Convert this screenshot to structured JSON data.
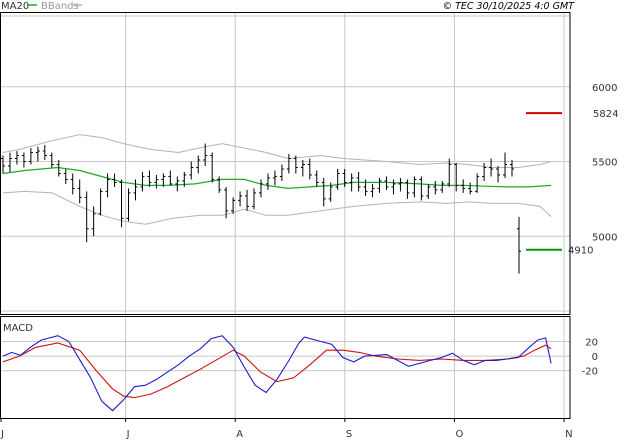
{
  "header": {
    "ma_label": "MA20",
    "bbands_label": "BBands",
    "copyright": "© TEC 30/10/2025 4:0 GMT"
  },
  "macd_label": "MACD",
  "colors": {
    "background": "#ffffff",
    "grid": "#c8c8c8",
    "frame": "#000000",
    "bbands": "#b4b4b4",
    "ma": "#1faa1f",
    "ohlc": "#000000",
    "resistance": "#cc0000",
    "support": "#009900",
    "macd": "#1c1ccf",
    "signal": "#cc1111"
  },
  "chart_data": [
    {
      "type": "ohlc",
      "name": "price",
      "ylim": [
        4480,
        6500
      ],
      "y_ticks": [
        5000,
        5500,
        6000
      ],
      "x_ticks": [
        "J",
        "J",
        "A",
        "S",
        "O",
        "N"
      ],
      "x_tick_values": [
        0,
        1,
        2,
        3,
        4,
        5
      ],
      "xlim": [
        0,
        5.2
      ],
      "x_values_note_units": "months from first tick",
      "levels": [
        {
          "label": "5824",
          "value": 5824,
          "color": "#cc0000"
        },
        {
          "label": "4910",
          "value": 4910,
          "color": "#009900"
        }
      ],
      "bars_open_high_low_close": [
        [
          5520,
          5540,
          5420,
          5470
        ],
        [
          5470,
          5560,
          5430,
          5520
        ],
        [
          5520,
          5570,
          5480,
          5540
        ],
        [
          5540,
          5560,
          5460,
          5500
        ],
        [
          5500,
          5590,
          5480,
          5560
        ],
        [
          5560,
          5600,
          5500,
          5570
        ],
        [
          5570,
          5610,
          5510,
          5540
        ],
        [
          5540,
          5560,
          5460,
          5480
        ],
        [
          5480,
          5510,
          5400,
          5420
        ],
        [
          5420,
          5450,
          5350,
          5380
        ],
        [
          5380,
          5420,
          5280,
          5320
        ],
        [
          5320,
          5380,
          5220,
          5260
        ],
        [
          5260,
          5300,
          4960,
          5050
        ],
        [
          5050,
          5200,
          5000,
          5150
        ],
        [
          5150,
          5320,
          5140,
          5300
        ],
        [
          5300,
          5420,
          5260,
          5380
        ],
        [
          5380,
          5420,
          5330,
          5360
        ],
        [
          5360,
          5380,
          5060,
          5120
        ],
        [
          5120,
          5320,
          5100,
          5290
        ],
        [
          5290,
          5380,
          5240,
          5330
        ],
        [
          5330,
          5430,
          5300,
          5400
        ],
        [
          5400,
          5440,
          5330,
          5360
        ],
        [
          5360,
          5410,
          5320,
          5380
        ],
        [
          5380,
          5420,
          5330,
          5400
        ],
        [
          5400,
          5440,
          5340,
          5350
        ],
        [
          5350,
          5400,
          5300,
          5370
        ],
        [
          5370,
          5430,
          5330,
          5410
        ],
        [
          5410,
          5500,
          5380,
          5460
        ],
        [
          5460,
          5540,
          5420,
          5510
        ],
        [
          5510,
          5620,
          5470,
          5540
        ],
        [
          5540,
          5560,
          5360,
          5380
        ],
        [
          5380,
          5400,
          5290,
          5310
        ],
        [
          5310,
          5330,
          5120,
          5170
        ],
        [
          5170,
          5260,
          5150,
          5240
        ],
        [
          5240,
          5300,
          5200,
          5270
        ],
        [
          5270,
          5310,
          5170,
          5200
        ],
        [
          5200,
          5320,
          5180,
          5290
        ],
        [
          5290,
          5380,
          5260,
          5350
        ],
        [
          5350,
          5420,
          5310,
          5390
        ],
        [
          5390,
          5440,
          5340,
          5400
        ],
        [
          5400,
          5480,
          5370,
          5450
        ],
        [
          5450,
          5550,
          5420,
          5520
        ],
        [
          5520,
          5540,
          5420,
          5460
        ],
        [
          5460,
          5510,
          5400,
          5480
        ],
        [
          5480,
          5520,
          5380,
          5410
        ],
        [
          5410,
          5440,
          5330,
          5360
        ],
        [
          5360,
          5390,
          5200,
          5250
        ],
        [
          5250,
          5360,
          5230,
          5330
        ],
        [
          5330,
          5450,
          5310,
          5420
        ],
        [
          5420,
          5450,
          5330,
          5360
        ],
        [
          5360,
          5420,
          5300,
          5390
        ],
        [
          5390,
          5430,
          5300,
          5330
        ],
        [
          5330,
          5380,
          5270,
          5300
        ],
        [
          5300,
          5350,
          5260,
          5320
        ],
        [
          5320,
          5390,
          5290,
          5370
        ],
        [
          5370,
          5400,
          5310,
          5330
        ],
        [
          5330,
          5380,
          5280,
          5350
        ],
        [
          5350,
          5390,
          5300,
          5360
        ],
        [
          5360,
          5380,
          5250,
          5290
        ],
        [
          5290,
          5400,
          5260,
          5380
        ],
        [
          5380,
          5400,
          5240,
          5270
        ],
        [
          5270,
          5350,
          5250,
          5330
        ],
        [
          5330,
          5370,
          5280,
          5310
        ],
        [
          5310,
          5370,
          5290,
          5350
        ],
        [
          5350,
          5520,
          5330,
          5480
        ],
        [
          5480,
          5490,
          5300,
          5340
        ],
        [
          5340,
          5380,
          5290,
          5320
        ],
        [
          5320,
          5360,
          5280,
          5300
        ],
        [
          5300,
          5420,
          5290,
          5400
        ],
        [
          5400,
          5490,
          5370,
          5460
        ],
        [
          5460,
          5520,
          5400,
          5450
        ],
        [
          5450,
          5470,
          5360,
          5410
        ],
        [
          5410,
          5560,
          5390,
          5480
        ],
        [
          5480,
          5510,
          5400,
          5450
        ],
        [
          5050,
          5130,
          4750,
          4900
        ]
      ],
      "bbands_upper": [
        [
          0,
          5560
        ],
        [
          0.15,
          5580
        ],
        [
          0.45,
          5640
        ],
        [
          0.7,
          5680
        ],
        [
          0.9,
          5660
        ],
        [
          1.1,
          5620
        ],
        [
          1.35,
          5580
        ],
        [
          1.6,
          5560
        ],
        [
          1.85,
          5600
        ],
        [
          2.0,
          5620
        ],
        [
          2.2,
          5590
        ],
        [
          2.4,
          5560
        ],
        [
          2.6,
          5520
        ],
        [
          2.9,
          5540
        ],
        [
          3.1,
          5520
        ],
        [
          3.3,
          5510
        ],
        [
          3.5,
          5500
        ],
        [
          3.8,
          5480
        ],
        [
          4.05,
          5490
        ],
        [
          4.25,
          5480
        ],
        [
          4.45,
          5460
        ],
        [
          4.7,
          5460
        ],
        [
          4.9,
          5480
        ],
        [
          5.0,
          5500
        ]
      ],
      "ma20": [
        [
          0,
          5420
        ],
        [
          0.2,
          5440
        ],
        [
          0.5,
          5460
        ],
        [
          0.7,
          5440
        ],
        [
          0.9,
          5400
        ],
        [
          1.1,
          5360
        ],
        [
          1.3,
          5340
        ],
        [
          1.5,
          5340
        ],
        [
          1.75,
          5350
        ],
        [
          2.0,
          5380
        ],
        [
          2.2,
          5380
        ],
        [
          2.4,
          5340
        ],
        [
          2.6,
          5320
        ],
        [
          2.8,
          5330
        ],
        [
          3.0,
          5340
        ],
        [
          3.2,
          5360
        ],
        [
          3.5,
          5360
        ],
        [
          3.8,
          5350
        ],
        [
          4.0,
          5340
        ],
        [
          4.2,
          5340
        ],
        [
          4.4,
          5335
        ],
        [
          4.6,
          5330
        ],
        [
          4.8,
          5330
        ],
        [
          5.0,
          5340
        ]
      ],
      "bbands_lower": [
        [
          0,
          5290
        ],
        [
          0.2,
          5300
        ],
        [
          0.45,
          5290
        ],
        [
          0.7,
          5200
        ],
        [
          0.9,
          5140
        ],
        [
          1.1,
          5100
        ],
        [
          1.3,
          5080
        ],
        [
          1.55,
          5120
        ],
        [
          1.8,
          5140
        ],
        [
          2.0,
          5140
        ],
        [
          2.2,
          5180
        ],
        [
          2.4,
          5140
        ],
        [
          2.6,
          5140
        ],
        [
          2.8,
          5160
        ],
        [
          3.0,
          5180
        ],
        [
          3.2,
          5200
        ],
        [
          3.5,
          5220
        ],
        [
          3.8,
          5230
        ],
        [
          4.05,
          5220
        ],
        [
          4.25,
          5230
        ],
        [
          4.45,
          5220
        ],
        [
          4.7,
          5220
        ],
        [
          4.9,
          5200
        ],
        [
          5.0,
          5130
        ]
      ]
    },
    {
      "type": "line",
      "name": "MACD",
      "ylim": [
        -85,
        55
      ],
      "y_ticks": [
        20,
        0,
        -20
      ],
      "y_tick_labels": [
        "20",
        "0",
        "-20"
      ],
      "series": [
        {
          "name": "MACD",
          "points": [
            [
              0,
              0
            ],
            [
              0.08,
              5
            ],
            [
              0.16,
              1
            ],
            [
              0.25,
              12
            ],
            [
              0.35,
              22
            ],
            [
              0.5,
              28
            ],
            [
              0.6,
              20
            ],
            [
              0.7,
              -5
            ],
            [
              0.8,
              -30
            ],
            [
              0.9,
              -62
            ],
            [
              1.0,
              -75
            ],
            [
              1.1,
              -60
            ],
            [
              1.2,
              -42
            ],
            [
              1.3,
              -40
            ],
            [
              1.4,
              -32
            ],
            [
              1.5,
              -22
            ],
            [
              1.6,
              -12
            ],
            [
              1.7,
              0
            ],
            [
              1.8,
              10
            ],
            [
              1.9,
              24
            ],
            [
              2.0,
              28
            ],
            [
              2.1,
              12
            ],
            [
              2.2,
              -15
            ],
            [
              2.3,
              -40
            ],
            [
              2.4,
              -50
            ],
            [
              2.5,
              -32
            ],
            [
              2.6,
              -8
            ],
            [
              2.7,
              18
            ],
            [
              2.75,
              26
            ],
            [
              2.85,
              22
            ],
            [
              3.0,
              16
            ],
            [
              3.1,
              -2
            ],
            [
              3.2,
              -8
            ],
            [
              3.3,
              0
            ],
            [
              3.5,
              2
            ],
            [
              3.6,
              -6
            ],
            [
              3.7,
              -14
            ],
            [
              3.8,
              -10
            ],
            [
              3.9,
              -6
            ],
            [
              4.0,
              -2
            ],
            [
              4.1,
              4
            ],
            [
              4.2,
              -6
            ],
            [
              4.3,
              -12
            ],
            [
              4.4,
              -6
            ],
            [
              4.5,
              -6
            ],
            [
              4.6,
              -4
            ],
            [
              4.7,
              -2
            ],
            [
              4.8,
              12
            ],
            [
              4.88,
              22
            ],
            [
              4.95,
              25
            ],
            [
              5.0,
              -10
            ]
          ]
        },
        {
          "name": "Signal",
          "points": [
            [
              0,
              -8
            ],
            [
              0.15,
              0
            ],
            [
              0.3,
              12
            ],
            [
              0.5,
              18
            ],
            [
              0.7,
              8
            ],
            [
              0.85,
              -20
            ],
            [
              1.0,
              -45
            ],
            [
              1.1,
              -55
            ],
            [
              1.2,
              -57
            ],
            [
              1.35,
              -52
            ],
            [
              1.5,
              -42
            ],
            [
              1.65,
              -30
            ],
            [
              1.8,
              -18
            ],
            [
              1.95,
              -5
            ],
            [
              2.1,
              8
            ],
            [
              2.2,
              0
            ],
            [
              2.35,
              -22
            ],
            [
              2.5,
              -35
            ],
            [
              2.65,
              -30
            ],
            [
              2.8,
              -12
            ],
            [
              2.95,
              8
            ],
            [
              3.1,
              8
            ],
            [
              3.25,
              5
            ],
            [
              3.4,
              0
            ],
            [
              3.6,
              -4
            ],
            [
              3.8,
              -6
            ],
            [
              4.0,
              -4
            ],
            [
              4.2,
              -6
            ],
            [
              4.4,
              -6
            ],
            [
              4.6,
              -4
            ],
            [
              4.75,
              0
            ],
            [
              4.85,
              8
            ],
            [
              4.95,
              15
            ],
            [
              5.0,
              10
            ]
          ]
        }
      ]
    }
  ]
}
